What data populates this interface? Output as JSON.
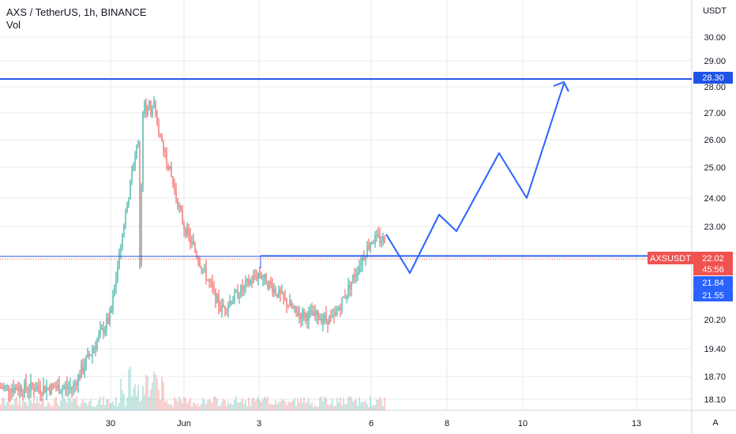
{
  "header": {
    "symbol_line": "AXS / TetherUS, 1h, BINANCE",
    "volume_label": "Vol"
  },
  "price_axis": {
    "unit": "USDT",
    "ticks": [
      "30.00",
      "29.00",
      "28.00",
      "27.00",
      "26.00",
      "25.00",
      "24.00",
      "23.00",
      "20.20",
      "19.40",
      "18.70",
      "18.10"
    ]
  },
  "time_axis": {
    "ticks": [
      "30",
      "Jun",
      "3",
      "6",
      "8",
      "10",
      "13"
    ]
  },
  "price_labels": {
    "resistance": "28.30",
    "symbol_tag": "AXSUSDT",
    "last_price": "22.02",
    "countdown": "45:56",
    "level_upper": "21.84",
    "level_lower": "21.55"
  },
  "colors": {
    "up": "#26a69a",
    "down": "#ef5350",
    "line": "#1e53e5",
    "arrow": "#2962ff",
    "resistance_label_bg": "#1e53e5",
    "level_label_bg": "#2962ff",
    "last_price_bg": "#ef5350",
    "grid": "#e8eaee"
  },
  "scale_button": "A",
  "chart_data": {
    "type": "candlestick",
    "symbol": "AXS / TetherUS",
    "interval": "1h",
    "exchange": "BINANCE",
    "unit": "USDT",
    "last_price": 22.02,
    "horizontal_levels": [
      28.3,
      21.84,
      21.55
    ],
    "projection_path": [
      {
        "date": "Jun 6",
        "price": 22.8
      },
      {
        "date": "Jun 7",
        "price": 21.6
      },
      {
        "date": "Jun 8",
        "price": 23.4
      },
      {
        "date": "Jun 8",
        "price": 22.9
      },
      {
        "date": "Jun 9",
        "price": 25.5
      },
      {
        "date": "Jun 10",
        "price": 24.0
      },
      {
        "date": "Jun 11",
        "price": 28.2
      }
    ],
    "anchors": [
      {
        "date": "May 28",
        "price": 18.4
      },
      {
        "date": "May 29",
        "price": 18.4
      },
      {
        "date": "May 30",
        "price": 20.3
      },
      {
        "date": "May 31",
        "price": 27.9
      },
      {
        "date": "Jun 1",
        "price": 23.0
      },
      {
        "date": "Jun 2",
        "price": 20.5
      },
      {
        "date": "Jun 3",
        "price": 21.6
      },
      {
        "date": "Jun 4",
        "price": 20.4
      },
      {
        "date": "Jun 5",
        "price": 20.2
      },
      {
        "date": "Jun 6",
        "price": 22.6
      }
    ]
  }
}
